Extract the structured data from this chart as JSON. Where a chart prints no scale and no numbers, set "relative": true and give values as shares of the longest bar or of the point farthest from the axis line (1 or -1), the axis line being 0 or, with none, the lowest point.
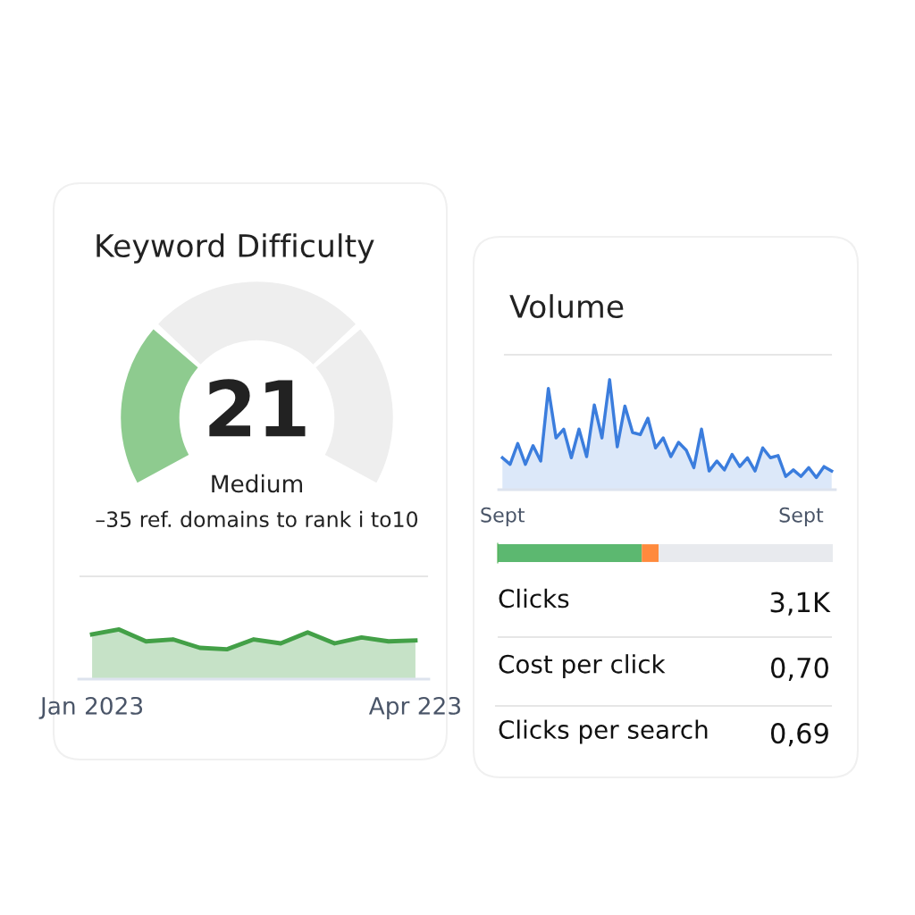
{
  "chart_data": [
    {
      "type": "donut",
      "title": "Keyword Difficulty",
      "categories": [
        null,
        null,
        null
      ],
      "values": [
        30,
        40,
        30
      ],
      "colors": [
        "#8ecb8f",
        "#eeeeee",
        "#eeeeee"
      ],
      "annotations": [
        "21",
        "Medium",
        "–35 ref. domains to rank i to10"
      ]
    },
    {
      "type": "area",
      "relative": true,
      "categories": [
        "Jan 2023",
        null,
        null,
        null,
        null,
        null,
        null,
        null,
        null,
        null,
        null,
        null,
        "Apr 223"
      ],
      "series": [
        {
          "color": "#43a047",
          "values": [
            0.9,
            1.0,
            0.76,
            0.8,
            0.63,
            0.6,
            0.8,
            0.72,
            0.94,
            0.72,
            0.84,
            0.76,
            0.78
          ]
        }
      ]
    },
    {
      "type": "area",
      "title": "Volume",
      "relative": true,
      "categories": [
        "Sept",
        null,
        null,
        null,
        null,
        null,
        null,
        null,
        null,
        null,
        null,
        null,
        null,
        null,
        null,
        null,
        null,
        null,
        null,
        null,
        null,
        null,
        null,
        null,
        null,
        null,
        null,
        null,
        null,
        null,
        null,
        null,
        null,
        null,
        null,
        null,
        null,
        null,
        null,
        "Sept",
        null,
        null,
        null,
        null
      ],
      "series": [
        {
          "color": "#3b7ddd",
          "values": [
            0.29,
            0.23,
            0.42,
            0.23,
            0.4,
            0.26,
            0.92,
            0.47,
            0.55,
            0.29,
            0.55,
            0.3,
            0.77,
            0.47,
            1.0,
            0.39,
            0.76,
            0.52,
            0.5,
            0.65,
            0.38,
            0.47,
            0.3,
            0.43,
            0.36,
            0.2,
            0.55,
            0.17,
            0.26,
            0.18,
            0.32,
            0.21,
            0.29,
            0.17,
            0.38,
            0.29,
            0.31,
            0.12,
            0.18,
            0.12,
            0.2,
            0.11,
            0.21,
            0.17
          ]
        }
      ]
    },
    {
      "type": "bar",
      "orientation": "horizontal",
      "stacked": true,
      "relative": true,
      "categories": [
        null
      ],
      "series": [
        {
          "color": "#5cb870",
          "values": [
            0.43
          ]
        },
        {
          "color": "#ff8a3d",
          "values": [
            0.05
          ]
        },
        {
          "color": "#e8eaee",
          "values": [
            0.52
          ]
        }
      ]
    },
    {
      "type": "other",
      "annotations": [
        "Clicks",
        "3,1K",
        "Cost per click",
        "0,70",
        "Clicks per search",
        "0,69"
      ]
    }
  ]
}
